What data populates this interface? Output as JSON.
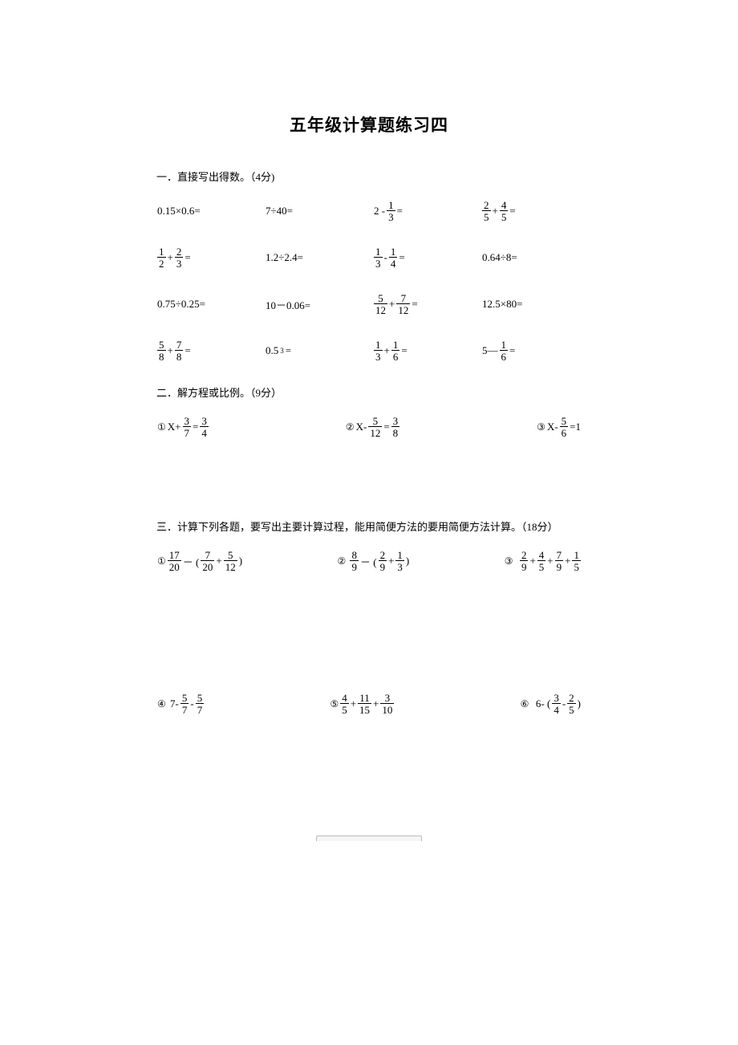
{
  "title": "五年级计算题练习四",
  "section1": {
    "header": "一．直接写出得数。（4分)",
    "problems": {
      "r1c1": "0.15×0.6=",
      "r1c2": "7÷40=",
      "r1c3_prefix": "2 -",
      "r1c3_n": "1",
      "r1c3_d": "3",
      "r1c3_suffix": " =",
      "r1c4_n1": "2",
      "r1c4_d1": "5",
      "r1c4_mid": " + ",
      "r1c4_n2": "4",
      "r1c4_d2": "5",
      "r1c4_suffix": " =",
      "r2c1_n1": "1",
      "r2c1_d1": "2",
      "r2c1_mid": " + ",
      "r2c1_n2": "2",
      "r2c1_d2": "3",
      "r2c1_suffix": " =",
      "r2c2": "1.2÷2.4=",
      "r2c3_n1": "1",
      "r2c3_d1": "3",
      "r2c3_mid": " - ",
      "r2c3_n2": "1",
      "r2c3_d2": "4",
      "r2c3_suffix": " =",
      "r2c4": "0.64÷8=",
      "r3c1": "0.75÷0.25=",
      "r3c2": "10－0.06=",
      "r3c3_n1": "5",
      "r3c3_d1": "12",
      "r3c3_mid": " + ",
      "r3c3_n2": "7",
      "r3c3_d2": "12",
      "r3c3_suffix": " =",
      "r3c4": "12.5×80=",
      "r4c1_n1": "5",
      "r4c1_d1": "8",
      "r4c1_mid": " + ",
      "r4c1_n2": "7",
      "r4c1_d2": "8",
      "r4c1_suffix": " =",
      "r4c2_prefix": "0.5",
      "r4c2_sup": "3",
      "r4c2_suffix": "=",
      "r4c3_n1": "1",
      "r4c3_d1": "3",
      "r4c3_mid": " + ",
      "r4c3_n2": "1",
      "r4c3_d2": "6",
      "r4c3_suffix": " =",
      "r4c4_prefix": "5— ",
      "r4c4_n": "1",
      "r4c4_d": "6",
      "r4c4_suffix": " ="
    }
  },
  "section2": {
    "header": "二．解方程或比例。（9分）",
    "eq1_label": "①",
    "eq1_pre": "X+ ",
    "eq1_n1": "3",
    "eq1_d1": "7",
    "eq1_mid": " = ",
    "eq1_n2": "3",
    "eq1_d2": "4",
    "eq2_label": "②",
    "eq2_pre": "X- ",
    "eq2_n1": "5",
    "eq2_d1": "12",
    "eq2_mid": " = ",
    "eq2_n2": "3",
    "eq2_d2": "8",
    "eq3_label": "③",
    "eq3_pre": "X-",
    "eq3_n1": "5",
    "eq3_d1": "6",
    "eq3_suffix": " =1"
  },
  "section3": {
    "header": "三．计算下列各题，要写出主要计算过程，能用简便方法的要用简便方法计算。（18分）",
    "c1_label": "①",
    "c1_n1": "17",
    "c1_d1": "20",
    "c1_m1": " － (",
    "c1_n2": "7",
    "c1_d2": "20",
    "c1_m2": " + ",
    "c1_n3": "5",
    "c1_d3": "12",
    "c1_end": " )",
    "c2_label": "②",
    "c2_n1": "8",
    "c2_d1": "9",
    "c2_m1": " － (",
    "c2_n2": "2",
    "c2_d2": "9",
    "c2_m2": " + ",
    "c2_n3": "1",
    "c2_d3": "3",
    "c2_end": " )",
    "c3_label": "③",
    "c3_n1": "2",
    "c3_d1": "9",
    "c3_m1": " + ",
    "c3_n2": "4",
    "c3_d2": "5",
    "c3_m2": " + ",
    "c3_n3": "7",
    "c3_d3": "9",
    "c3_m3": " + ",
    "c3_n4": "1",
    "c3_d4": "5",
    "c4_label": "④",
    "c4_pre": "7- ",
    "c4_n1": "5",
    "c4_d1": "7",
    "c4_m1": " - ",
    "c4_n2": "5",
    "c4_d2": "7",
    "c5_label": "⑤",
    "c5_n1": "4",
    "c5_d1": "5",
    "c5_m1": " + ",
    "c5_n2": "11",
    "c5_d2": "15",
    "c5_m2": " + ",
    "c5_n3": "3",
    "c5_d3": "10",
    "c6_label": "⑥",
    "c6_pre": "6-  (",
    "c6_n1": "3",
    "c6_d1": "4",
    "c6_m1": " - ",
    "c6_n2": "2",
    "c6_d2": "5",
    "c6_end": " )"
  }
}
